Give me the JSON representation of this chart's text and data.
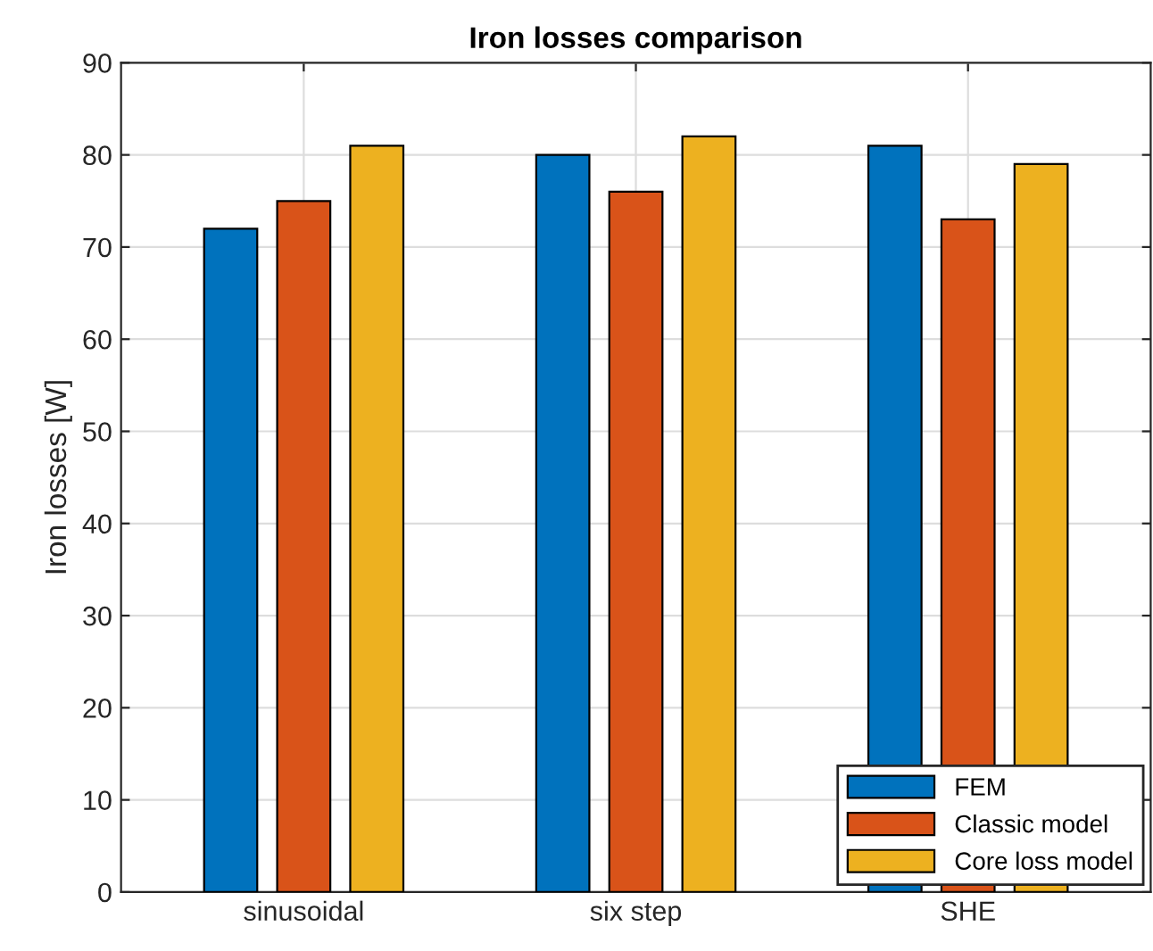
{
  "chart_data": {
    "type": "bar",
    "title": "Iron losses comparison",
    "ylabel": "Iron losses [W]",
    "categories": [
      "sinusoidal",
      "six step",
      "SHE"
    ],
    "series": [
      {
        "name": "FEM",
        "color": "#0072bd",
        "values": [
          72,
          80,
          81
        ]
      },
      {
        "name": "Classic model",
        "color": "#d95319",
        "values": [
          75,
          76,
          73
        ]
      },
      {
        "name": "Core loss model",
        "color": "#edb120",
        "values": [
          81,
          82,
          79
        ]
      }
    ],
    "ylim": [
      0,
      90
    ],
    "yticks": [
      0,
      10,
      20,
      30,
      40,
      50,
      60,
      70,
      80,
      90
    ],
    "grid": true,
    "legend": "bottom right"
  }
}
